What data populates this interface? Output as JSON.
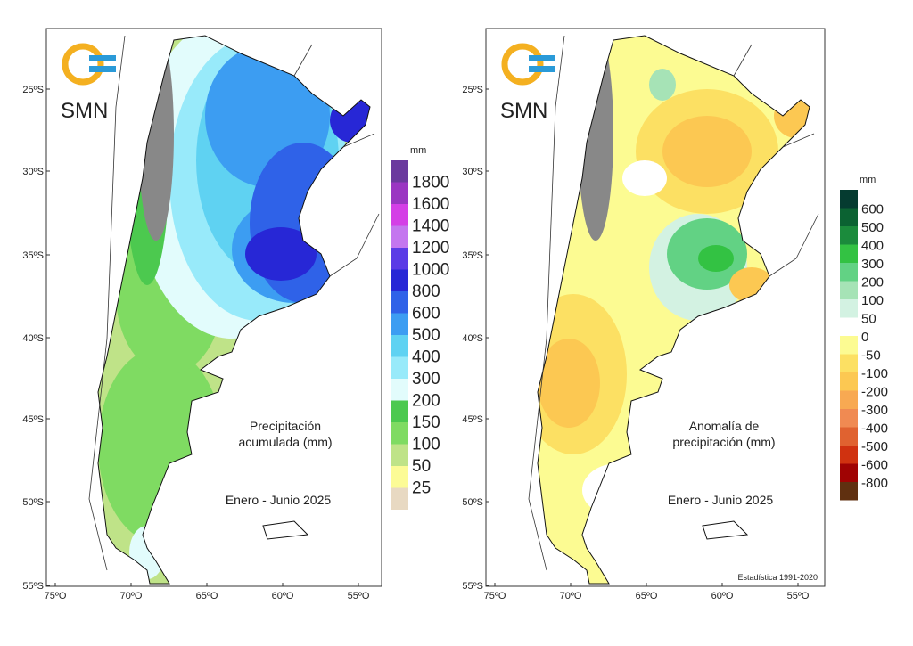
{
  "logo": {
    "text": "SMN"
  },
  "axes": {
    "lat_ticks": [
      "25ºS",
      "30ºS",
      "35ºS",
      "40ºS",
      "45ºS",
      "50ºS",
      "55ºS"
    ],
    "lon_ticks": [
      "75ºO",
      "70ºO",
      "65ºO",
      "60ºO",
      "55ºO"
    ]
  },
  "left_map": {
    "title_line1": "Precipitación",
    "title_line2": "acumulada (mm)",
    "period": "Enero - Junio 2025",
    "legend": {
      "unit": "mm",
      "labels": [
        "1800",
        "1600",
        "1400",
        "1200",
        "1000",
        "800",
        "600",
        "500",
        "400",
        "300",
        "200",
        "150",
        "100",
        "50",
        "25"
      ],
      "colors": [
        "#6b3a9e",
        "#9a36c2",
        "#d43fe6",
        "#c476ef",
        "#5b3be6",
        "#2727d6",
        "#2f62e8",
        "#3c9df2",
        "#5fd2f2",
        "#98eafa",
        "#e2fcfc",
        "#4cc94f",
        "#7fdb62",
        "#bfe388",
        "#fcfb96",
        "#e8d9c2"
      ]
    }
  },
  "right_map": {
    "title_line1": "Anomalía de",
    "title_line2": "precipitación (mm)",
    "period": "Enero - Junio 2025",
    "footnote": "Estadística 1991-2020",
    "legend": {
      "unit": "mm",
      "labels": [
        "600",
        "500",
        "400",
        "300",
        "200",
        "100",
        "50",
        "0",
        "-50",
        "-100",
        "-200",
        "-300",
        "-400",
        "-500",
        "-600",
        "-800"
      ],
      "colors": [
        "#053b30",
        "#0b6232",
        "#1b8b3c",
        "#33c243",
        "#62d284",
        "#a6e3b6",
        "#d3f2e2",
        "#ffffff",
        "#fcfb92",
        "#fce063",
        "#fcc852",
        "#f8a952",
        "#f08a52",
        "#e06230",
        "#d03210",
        "#a00303",
        "#603010"
      ]
    }
  }
}
